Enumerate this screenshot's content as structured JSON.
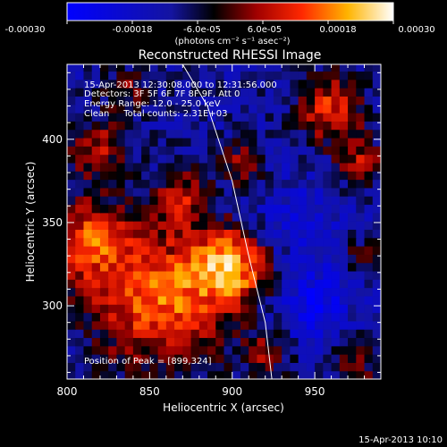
{
  "colorbar": {
    "ticks": [
      "-0.00030",
      "-0.00018",
      "-6.0e-05",
      "6.0e-05",
      "0.00018",
      "0.00030"
    ],
    "tick_values": [
      -0.0003,
      -0.00018,
      -6e-05,
      6e-05,
      0.00018,
      0.0003
    ],
    "range": [
      -0.0003,
      0.0003
    ],
    "units_label": "(photons cm⁻² s⁻¹ asec⁻²)"
  },
  "plot": {
    "title": "Reconstructed RHESSI Image",
    "xlabel": "Heliocentric X (arcsec)",
    "ylabel": "Heliocentric Y (arcsec)",
    "annotations": [
      "15-Apr-2013 12:30:08.000 to 12:31:56.000",
      "Detectors: 3F 5F 6F 7F 8F 9F, Att 0",
      "Energy Range: 12.0 - 25.0 keV",
      "Clean     Total counts: 2.31E+03"
    ],
    "peak_label": "Position of Peak = [899,324]"
  },
  "footer": {
    "timestamp": "15-Apr-2013 10:10"
  },
  "chart_data": {
    "type": "heatmap",
    "title": "Reconstructed RHESSI Image",
    "xlabel": "Heliocentric X (arcsec)",
    "ylabel": "Heliocentric Y (arcsec)",
    "xlim": [
      800,
      990
    ],
    "ylim": [
      256,
      445
    ],
    "xticks": [
      800,
      850,
      900,
      950
    ],
    "yticks": [
      300,
      350,
      400
    ],
    "colormap": "rhessi-blue-black-red-yellow-white",
    "peak": [
      899,
      324
    ],
    "limb": [
      [
        870,
        445
      ],
      [
        885,
        420
      ],
      [
        900,
        375
      ],
      [
        910,
        330
      ],
      [
        920,
        290
      ],
      [
        924,
        256
      ]
    ],
    "sources": [
      {
        "x": 855,
        "y": 305,
        "amplitude": 0.00028,
        "sigma": 28
      },
      {
        "x": 899,
        "y": 324,
        "amplitude": 0.0003,
        "sigma": 16
      },
      {
        "x": 812,
        "y": 340,
        "amplitude": 0.00022,
        "sigma": 18
      },
      {
        "x": 818,
        "y": 395,
        "amplitude": 0.00017,
        "sigma": 12
      },
      {
        "x": 870,
        "y": 365,
        "amplitude": 0.00016,
        "sigma": 12
      },
      {
        "x": 905,
        "y": 385,
        "amplitude": 0.00016,
        "sigma": 9
      },
      {
        "x": 960,
        "y": 418,
        "amplitude": 0.00022,
        "sigma": 14
      },
      {
        "x": 978,
        "y": 385,
        "amplitude": 0.00018,
        "sigma": 10
      },
      {
        "x": 980,
        "y": 330,
        "amplitude": 0.00012,
        "sigma": 8
      },
      {
        "x": 920,
        "y": 270,
        "amplitude": 0.00014,
        "sigma": 10
      },
      {
        "x": 975,
        "y": 265,
        "amplitude": 0.00012,
        "sigma": 10
      },
      {
        "x": 835,
        "y": 430,
        "amplitude": 0.00012,
        "sigma": 10
      },
      {
        "x": 950,
        "y": 300,
        "amplitude": -0.00015,
        "sigma": 15
      },
      {
        "x": 940,
        "y": 350,
        "amplitude": -8e-05,
        "sigma": 20
      }
    ]
  }
}
